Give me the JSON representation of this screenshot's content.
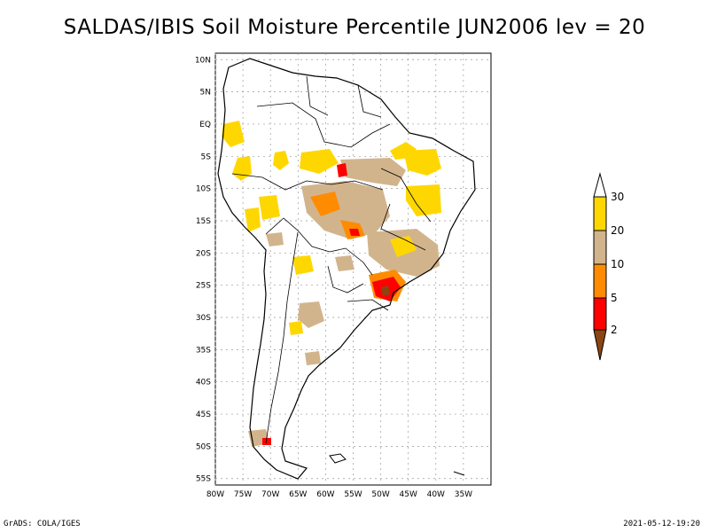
{
  "title": "SALDAS/IBIS Soil Moisture Percentile JUN2006 lev = 20",
  "map": {
    "lat_labels": [
      "10N",
      "5N",
      "EQ",
      "5S",
      "10S",
      "15S",
      "20S",
      "25S",
      "30S",
      "35S",
      "40S",
      "45S",
      "50S",
      "55S"
    ],
    "lon_labels": [
      "80W",
      "75W",
      "70W",
      "65W",
      "60W",
      "55W",
      "50W",
      "45W",
      "40W",
      "35W"
    ],
    "lon_range": [
      -80,
      -30
    ],
    "lat_range": [
      -56,
      11
    ],
    "grid": true
  },
  "colorbar": {
    "labels": [
      "2",
      "5",
      "10",
      "20",
      "30"
    ],
    "colors": {
      "below_2": "#8b4513",
      "2_5": "#ff0000",
      "5_10": "#ff8c00",
      "10_20": "#d2b48c",
      "20_30": "#ffd700",
      "above_30": "#ffffff"
    }
  },
  "footer": {
    "left": "GrADS: COLA/IGES",
    "right": "2021-05-12-19:20"
  }
}
